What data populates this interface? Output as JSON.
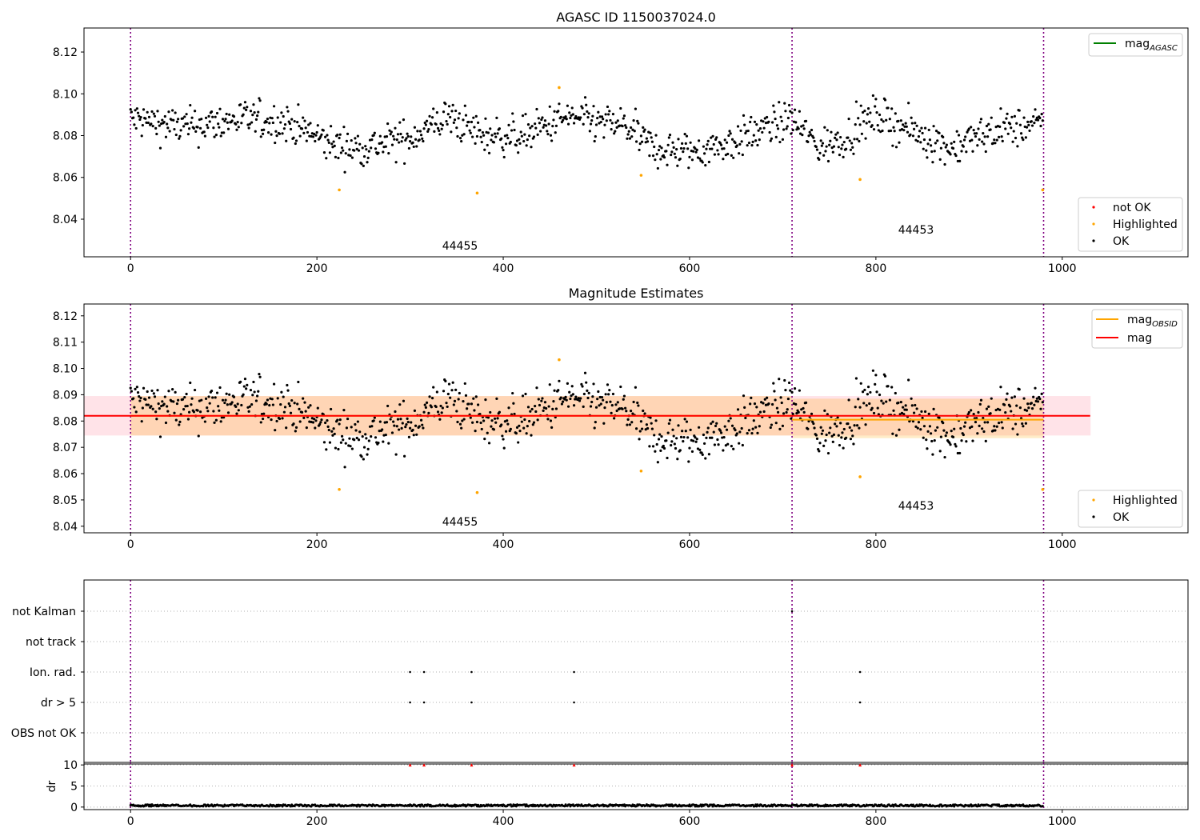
{
  "chart_data": [
    {
      "type": "scatter",
      "title": "AGASC ID 1150037024.0",
      "xlabel": "",
      "ylabel": "",
      "xlim": [
        -50,
        1135
      ],
      "ylim": [
        8.022,
        8.1315
      ],
      "xticks": [
        0,
        200,
        400,
        600,
        800,
        1000
      ],
      "yticks": [
        8.04,
        8.06,
        8.08,
        8.1,
        8.12
      ],
      "ytick_decimals": 2,
      "obsid_boundaries": [
        0,
        710,
        980
      ],
      "obsid_labels": [
        {
          "text": "44455",
          "x": 355,
          "y": 8.0265
        },
        {
          "text": "44453",
          "x": 845,
          "y": 8.0343
        }
      ],
      "highlighted_points": [
        {
          "x": 224,
          "y": 8.054
        },
        {
          "x": 372,
          "y": 8.0525
        },
        {
          "x": 460,
          "y": 8.103
        },
        {
          "x": 548,
          "y": 8.061
        },
        {
          "x": 783,
          "y": 8.059
        },
        {
          "x": 979,
          "y": 8.054
        }
      ],
      "ok_points": {
        "n": 980,
        "mean": 8.082,
        "range": [
          8.062,
          8.102
        ]
      },
      "reference_lines": [
        {
          "name": "mag_AGASC",
          "color": "#008000",
          "y": null
        }
      ],
      "legends": [
        {
          "position": "upper right",
          "entries": [
            {
              "label": "mag",
              "sub": "AGASC",
              "color": "#008000",
              "kind": "line"
            }
          ]
        },
        {
          "position": "lower right",
          "entries": [
            {
              "label": "not OK",
              "color": "#ff0000",
              "kind": "dot"
            },
            {
              "label": "Highlighted",
              "color": "#ffa500",
              "kind": "dot"
            },
            {
              "label": "OK",
              "color": "#000000",
              "kind": "dot"
            }
          ]
        }
      ],
      "grid": false
    },
    {
      "type": "scatter",
      "title": "Magnitude Estimates",
      "xlabel": "",
      "ylabel": "",
      "xlim": [
        -50,
        1135
      ],
      "ylim": [
        8.0375,
        8.1245
      ],
      "xticks": [
        0,
        200,
        400,
        600,
        800,
        1000
      ],
      "yticks": [
        8.04,
        8.05,
        8.06,
        8.07,
        8.08,
        8.09,
        8.1,
        8.11,
        8.12
      ],
      "ytick_decimals": 2,
      "obsid_boundaries": [
        0,
        710,
        980
      ],
      "obsid_labels": [
        {
          "text": "44455",
          "x": 355,
          "y": 8.0408
        },
        {
          "text": "44453",
          "x": 845,
          "y": 8.0473
        }
      ],
      "mag": {
        "value": 8.082,
        "band": [
          8.0745,
          8.0895
        ],
        "x_range": [
          -50,
          1030
        ],
        "color": "#ff0000"
      },
      "mag_obsid": [
        {
          "obsid": "44455",
          "x_range": [
            0,
            710
          ],
          "value": 8.082,
          "band": [
            8.0745,
            8.0895
          ]
        },
        {
          "obsid": "44453",
          "x_range": [
            710,
            980
          ],
          "value": 8.0805,
          "band": [
            8.0735,
            8.0885
          ]
        }
      ],
      "highlighted_points": [
        {
          "x": 224,
          "y": 8.054
        },
        {
          "x": 372,
          "y": 8.0528
        },
        {
          "x": 460,
          "y": 8.1033
        },
        {
          "x": 548,
          "y": 8.061
        },
        {
          "x": 783,
          "y": 8.0588
        },
        {
          "x": 979,
          "y": 8.054
        }
      ],
      "ok_points": {
        "n": 980,
        "mean": 8.082,
        "range": [
          8.062,
          8.102
        ]
      },
      "legends": [
        {
          "position": "upper right",
          "entries": [
            {
              "label": "mag",
              "sub": "OBSID",
              "color": "#ffa500",
              "kind": "line"
            },
            {
              "label": "mag",
              "sub": "",
              "color": "#ff0000",
              "kind": "line"
            }
          ]
        },
        {
          "position": "lower right",
          "entries": [
            {
              "label": "Highlighted",
              "color": "#ffa500",
              "kind": "dot"
            },
            {
              "label": "OK",
              "color": "#000000",
              "kind": "dot"
            }
          ]
        }
      ],
      "grid": false
    },
    {
      "type": "scatter",
      "title": "",
      "xlabel": "",
      "ylabel": "",
      "xlim": [
        -50,
        1135
      ],
      "flag_rows": [
        "not Kalman",
        "not track",
        "Ion. rad.",
        "dr > 5",
        "OBS not OK"
      ],
      "obsid_boundaries": [
        0,
        710,
        980
      ],
      "flags": [
        {
          "row": "not Kalman",
          "x": [
            710
          ]
        },
        {
          "row": "not track",
          "x": []
        },
        {
          "row": "Ion. rad.",
          "x": [
            300,
            315,
            366,
            476,
            783
          ]
        },
        {
          "row": "dr > 5",
          "x": [
            300,
            315,
            366,
            476,
            783
          ]
        },
        {
          "row": "OBS not OK",
          "x": []
        }
      ],
      "grid": true
    },
    {
      "type": "scatter",
      "title": "",
      "xlabel": "",
      "ylabel": "dr",
      "xlim": [
        -50,
        1135
      ],
      "ylim": [
        -0.6,
        10.6
      ],
      "xticks": [
        0,
        200,
        400,
        600,
        800,
        1000
      ],
      "yticks": [
        0,
        5,
        10
      ],
      "obsid_boundaries": [
        0,
        710,
        980
      ],
      "clipped_points": [
        {
          "x": 300,
          "y": 10
        },
        {
          "x": 315,
          "y": 10
        },
        {
          "x": 366,
          "y": 10
        },
        {
          "x": 476,
          "y": 10
        },
        {
          "x": 710,
          "y": 10
        },
        {
          "x": 783,
          "y": 10
        }
      ],
      "dr_points": {
        "n": 980,
        "typical_range": [
          0.1,
          0.6
        ]
      },
      "grid": true
    }
  ]
}
